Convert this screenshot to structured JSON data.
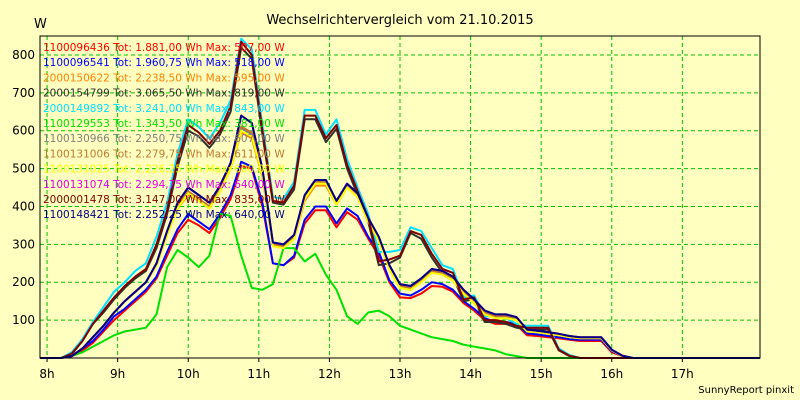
{
  "chart_data": {
    "type": "line",
    "title": "Wechselrichtervergleich vom 21.10.2015",
    "ylabel": "W",
    "xlabel": "",
    "footer": "SunnyReport pinxit",
    "grid": true,
    "legend_position": "top-left",
    "ylim": [
      0,
      850
    ],
    "xlim": [
      7.9,
      18.1
    ],
    "yticks": [
      100,
      200,
      300,
      400,
      500,
      600,
      700,
      800
    ],
    "xticks": [
      {
        "value": 8,
        "label": "8h"
      },
      {
        "value": 9,
        "label": "9h"
      },
      {
        "value": 10,
        "label": "10h"
      },
      {
        "value": 11,
        "label": "11h"
      },
      {
        "value": 12,
        "label": "12h"
      },
      {
        "value": 13,
        "label": "13h"
      },
      {
        "value": 14,
        "label": "14h"
      },
      {
        "value": 15,
        "label": "15h"
      },
      {
        "value": 16,
        "label": "16h"
      },
      {
        "value": 17,
        "label": "17h"
      }
    ],
    "x": [
      7.9,
      8.2,
      8.35,
      8.5,
      8.65,
      8.8,
      8.95,
      9.1,
      9.25,
      9.4,
      9.55,
      9.7,
      9.85,
      10.0,
      10.15,
      10.3,
      10.45,
      10.6,
      10.75,
      10.9,
      11.05,
      11.2,
      11.35,
      11.5,
      11.65,
      11.8,
      11.95,
      12.1,
      12.25,
      12.4,
      12.55,
      12.7,
      12.85,
      13.0,
      13.15,
      13.3,
      13.45,
      13.6,
      13.75,
      13.9,
      14.05,
      14.2,
      14.35,
      14.5,
      14.65,
      14.8,
      14.95,
      15.1,
      15.25,
      15.4,
      15.55,
      15.7,
      15.85,
      16.0,
      16.15,
      16.3,
      16.45,
      16.6,
      16.75,
      16.9,
      17.05,
      17.2,
      17.35,
      17.5,
      17.65,
      17.8,
      17.95,
      18.1
    ],
    "series": [
      {
        "name": "1100096436",
        "legend": "1100096436 Tot: 1.881,00 Wh Max: 507,00 W",
        "color": "#ff0000",
        "values": [
          0,
          0,
          5,
          20,
          40,
          70,
          100,
          125,
          150,
          175,
          210,
          270,
          330,
          365,
          350,
          330,
          370,
          420,
          507,
          500,
          400,
          250,
          245,
          265,
          355,
          390,
          390,
          345,
          385,
          365,
          315,
          270,
          200,
          160,
          158,
          170,
          190,
          188,
          175,
          145,
          125,
          100,
          90,
          90,
          88,
          60,
          58,
          55,
          52,
          48,
          45,
          45,
          45,
          15,
          5,
          0,
          0,
          0,
          0,
          0,
          0,
          0,
          0,
          0,
          0,
          0,
          0,
          0
        ]
      },
      {
        "name": "1100096541",
        "legend": "1100096541 Tot: 1.960,75 Wh Max: 518,00 W",
        "color": "#0000ff",
        "values": [
          0,
          0,
          5,
          25,
          45,
          75,
          110,
          130,
          155,
          180,
          215,
          280,
          340,
          380,
          360,
          340,
          380,
          430,
          518,
          505,
          410,
          250,
          245,
          270,
          365,
          400,
          400,
          355,
          395,
          375,
          320,
          280,
          205,
          170,
          165,
          180,
          200,
          195,
          180,
          150,
          130,
          105,
          95,
          95,
          90,
          65,
          62,
          58,
          55,
          50,
          48,
          48,
          48,
          18,
          5,
          0,
          0,
          0,
          0,
          0,
          0,
          0,
          0,
          0,
          0,
          0,
          0,
          0
        ]
      },
      {
        "name": "2000150622",
        "legend": "2000150622 Tot: 2.238,50 Wh Max: 595,00 W",
        "color": "#ff8000",
        "values": [
          0,
          0,
          5,
          25,
          55,
          85,
          120,
          150,
          175,
          200,
          245,
          325,
          395,
          430,
          415,
          395,
          440,
          500,
          595,
          580,
          480,
          295,
          290,
          315,
          415,
          455,
          455,
          405,
          450,
          425,
          360,
          310,
          235,
          185,
          180,
          200,
          225,
          220,
          205,
          170,
          145,
          115,
          105,
          105,
          100,
          70,
          68,
          64,
          60,
          55,
          52,
          52,
          52,
          20,
          5,
          0,
          0,
          0,
          0,
          0,
          0,
          0,
          0,
          0,
          0,
          0,
          0,
          0
        ]
      },
      {
        "name": "2000154799",
        "legend": "2000154799 Tot: 3.065,50 Wh Max: 819,00 W",
        "color": "#303030",
        "values": [
          0,
          0,
          10,
          45,
          90,
          120,
          155,
          185,
          210,
          230,
          290,
          380,
          505,
          600,
          585,
          555,
          590,
          650,
          819,
          790,
          590,
          410,
          405,
          445,
          630,
          630,
          570,
          605,
          500,
          430,
          360,
          245,
          250,
          265,
          330,
          315,
          265,
          225,
          215,
          150,
          155,
          95,
          95,
          90,
          80,
          75,
          75,
          75,
          20,
          5,
          0,
          0,
          0,
          0,
          0,
          0,
          0,
          0,
          0,
          0,
          0,
          0,
          0,
          0,
          0,
          0,
          0,
          0
        ]
      },
      {
        "name": "2000149892",
        "legend": "2000149892 Tot: 3.241,00 Wh Max: 843,00 W",
        "color": "#00e0ff",
        "values": [
          0,
          0,
          15,
          50,
          95,
          135,
          175,
          200,
          230,
          250,
          320,
          410,
          540,
          630,
          610,
          580,
          620,
          680,
          843,
          815,
          615,
          425,
          420,
          465,
          655,
          655,
          590,
          630,
          525,
          450,
          380,
          280,
          280,
          285,
          345,
          335,
          290,
          245,
          235,
          160,
          165,
          110,
          110,
          105,
          90,
          85,
          85,
          85,
          25,
          8,
          0,
          0,
          0,
          0,
          0,
          0,
          0,
          0,
          0,
          0,
          0,
          0,
          0,
          0,
          0,
          0,
          0,
          0
        ]
      },
      {
        "name": "1100129553",
        "legend": "1100129553 Tot: 1.343,50 Wh Max: 381,00 W",
        "color": "#00e000",
        "values": [
          0,
          0,
          5,
          15,
          30,
          45,
          60,
          70,
          75,
          80,
          115,
          240,
          285,
          265,
          240,
          270,
          381,
          375,
          270,
          185,
          180,
          195,
          290,
          290,
          255,
          275,
          220,
          180,
          110,
          90,
          120,
          125,
          110,
          85,
          75,
          65,
          55,
          50,
          45,
          35,
          30,
          25,
          20,
          10,
          5,
          0,
          0,
          0,
          0,
          0,
          0,
          0,
          0,
          0,
          0,
          0,
          0,
          0,
          0,
          0,
          0,
          0,
          0,
          0,
          0,
          0,
          0,
          0
        ]
      },
      {
        "name": "1100130966",
        "legend": "1100130966 Tot: 2.250,75 Wh Max: 607,00 W",
        "color": "#808080",
        "values": [
          0,
          0,
          5,
          25,
          55,
          85,
          120,
          150,
          175,
          200,
          245,
          330,
          400,
          440,
          420,
          400,
          445,
          505,
          607,
          590,
          490,
          300,
          295,
          320,
          425,
          465,
          465,
          410,
          455,
          430,
          365,
          315,
          240,
          190,
          185,
          205,
          230,
          225,
          210,
          175,
          150,
          120,
          110,
          110,
          105,
          72,
          70,
          66,
          62,
          57,
          54,
          54,
          54,
          22,
          6,
          0,
          0,
          0,
          0,
          0,
          0,
          0,
          0,
          0,
          0,
          0,
          0,
          0
        ]
      },
      {
        "name": "1100131006",
        "legend": "1100131006 Tot: 2.279,75 Wh Max: 611,00 W",
        "color": "#c07830",
        "values": [
          0,
          0,
          5,
          25,
          55,
          85,
          120,
          150,
          175,
          200,
          245,
          330,
          400,
          440,
          420,
          400,
          445,
          505,
          611,
          595,
          490,
          300,
          295,
          320,
          425,
          465,
          465,
          410,
          455,
          430,
          365,
          315,
          240,
          190,
          185,
          205,
          230,
          225,
          210,
          175,
          150,
          120,
          110,
          110,
          105,
          72,
          70,
          66,
          62,
          57,
          54,
          54,
          54,
          22,
          6,
          0,
          0,
          0,
          0,
          0,
          0,
          0,
          0,
          0,
          0,
          0,
          0,
          0
        ]
      },
      {
        "name": "1100131025",
        "legend": "1100131025 Tot: 2.226,25 Wh Max: 600,00 W",
        "color": "#ffff00",
        "values": [
          0,
          0,
          5,
          25,
          55,
          85,
          120,
          150,
          175,
          200,
          245,
          325,
          395,
          435,
          415,
          395,
          440,
          500,
          600,
          585,
          485,
          295,
          290,
          315,
          420,
          460,
          460,
          405,
          450,
          425,
          360,
          310,
          235,
          185,
          180,
          200,
          225,
          220,
          205,
          170,
          145,
          115,
          105,
          105,
          100,
          70,
          68,
          64,
          60,
          55,
          52,
          52,
          52,
          20,
          5,
          0,
          0,
          0,
          0,
          0,
          0,
          0,
          0,
          0,
          0,
          0,
          0,
          0
        ]
      },
      {
        "name": "1100131074",
        "legend": "1100131074 Tot: 2.294,75 Wh Max: 640,00 W",
        "color": "#e000e0",
        "values": [
          0,
          0,
          5,
          25,
          55,
          85,
          120,
          150,
          175,
          200,
          250,
          335,
          410,
          450,
          430,
          410,
          455,
          515,
          640,
          620,
          500,
          305,
          300,
          325,
          430,
          470,
          470,
          415,
          460,
          435,
          370,
          320,
          245,
          195,
          190,
          210,
          235,
          230,
          215,
          180,
          155,
          125,
          115,
          115,
          108,
          75,
          72,
          68,
          64,
          58,
          55,
          55,
          55,
          22,
          6,
          0,
          0,
          0,
          0,
          0,
          0,
          0,
          0,
          0,
          0,
          0,
          0,
          0
        ]
      },
      {
        "name": "2000001478",
        "legend": "2000001478 Tot: 3.147,00 Wh Max: 835,00 W",
        "color": "#800000",
        "values": [
          0,
          0,
          12,
          45,
          90,
          125,
          160,
          190,
          215,
          235,
          300,
          390,
          520,
          615,
          595,
          565,
          600,
          665,
          835,
          800,
          600,
          415,
          410,
          455,
          640,
          640,
          580,
          615,
          510,
          440,
          370,
          255,
          260,
          270,
          335,
          325,
          275,
          235,
          225,
          155,
          160,
          100,
          100,
          95,
          85,
          80,
          80,
          80,
          22,
          6,
          0,
          0,
          0,
          0,
          0,
          0,
          0,
          0,
          0,
          0,
          0,
          0,
          0,
          0,
          0,
          0,
          0,
          0
        ]
      },
      {
        "name": "1100148421",
        "legend": "1100148421 Tot: 2.252,25 Wh Max: 640,00 W",
        "color": "#000080",
        "values": [
          0,
          0,
          5,
          25,
          55,
          85,
          120,
          150,
          175,
          200,
          250,
          335,
          410,
          450,
          430,
          410,
          455,
          515,
          640,
          620,
          500,
          305,
          300,
          325,
          430,
          470,
          470,
          415,
          460,
          435,
          370,
          320,
          245,
          195,
          190,
          210,
          235,
          230,
          215,
          180,
          155,
          125,
          115,
          115,
          108,
          75,
          72,
          68,
          64,
          58,
          55,
          55,
          55,
          22,
          6,
          0,
          0,
          0,
          0,
          0,
          0,
          0,
          0,
          0,
          0,
          0,
          0,
          0
        ]
      }
    ]
  }
}
